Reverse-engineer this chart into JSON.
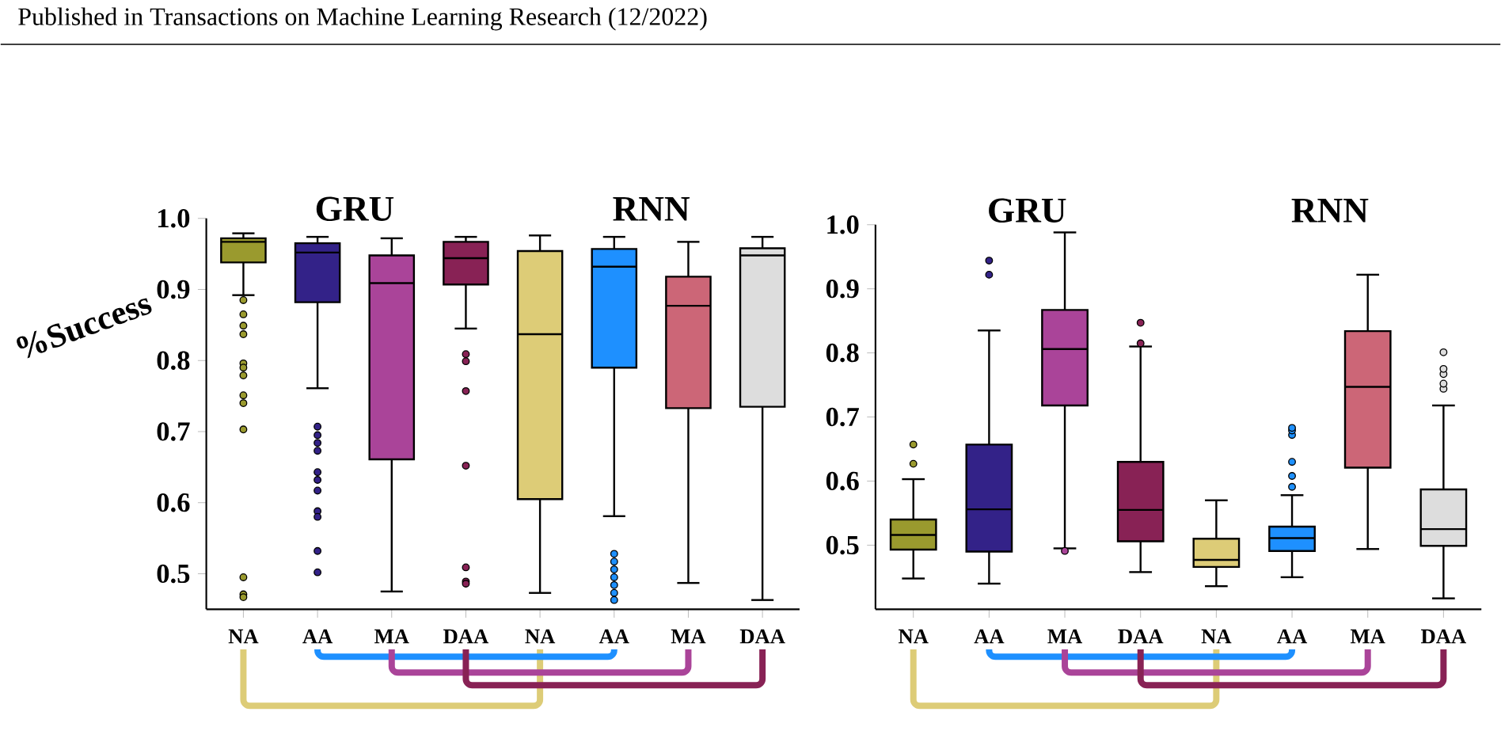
{
  "chart_data": [
    {
      "type": "box",
      "ylabel": "%Success",
      "annotations": [
        "GRU",
        "RNN",
        "Published in Transactions on Machine Learning Research (12/2022)"
      ],
      "categories": [
        "NA",
        "AA",
        "MA",
        "DAA",
        "NA",
        "AA",
        "MA",
        "DAA"
      ],
      "colors": [
        "#9a9a2e",
        "#332288",
        "#aa4499",
        "#882255",
        "#ddcc77",
        "#1e90ff",
        "#cc6677",
        "#dddddd"
      ],
      "boxes": [
        {
          "low": 0.892,
          "q1": 0.938,
          "median": 0.967,
          "q3": 0.972,
          "high": 0.979,
          "outliers": [
            0.885,
            0.865,
            0.849,
            0.837,
            0.796,
            0.79,
            0.779,
            0.751,
            0.74,
            0.703,
            0.495,
            0.471,
            0.467
          ]
        },
        {
          "low": 0.761,
          "q1": 0.882,
          "median": 0.952,
          "q3": 0.965,
          "high": 0.974,
          "outliers": [
            0.707,
            0.695,
            0.684,
            0.673,
            0.643,
            0.632,
            0.617,
            0.588,
            0.58,
            0.532,
            0.502
          ]
        },
        {
          "low": 0.475,
          "q1": 0.661,
          "median": 0.909,
          "q3": 0.948,
          "high": 0.972
        },
        {
          "low": 0.845,
          "q1": 0.907,
          "median": 0.944,
          "q3": 0.967,
          "high": 0.974,
          "outliers": [
            0.809,
            0.799,
            0.757,
            0.652,
            0.509,
            0.489,
            0.486
          ]
        },
        {
          "low": 0.473,
          "q1": 0.605,
          "median": 0.837,
          "q3": 0.954,
          "high": 0.976
        },
        {
          "low": 0.581,
          "q1": 0.79,
          "median": 0.932,
          "q3": 0.957,
          "high": 0.974,
          "outliers": [
            0.528,
            0.517,
            0.506,
            0.495,
            0.484,
            0.473,
            0.463
          ]
        },
        {
          "low": 0.487,
          "q1": 0.733,
          "median": 0.877,
          "q3": 0.918,
          "high": 0.967
        },
        {
          "low": 0.463,
          "q1": 0.735,
          "median": 0.948,
          "q3": 0.958,
          "high": 0.974
        }
      ],
      "ylim": [
        0.45,
        1.0
      ],
      "yticks": [
        0.5,
        0.6,
        0.7,
        0.8,
        0.9,
        {
          "value": 1.0,
          "label": "1.0"
        }
      ]
    },
    {
      "type": "box",
      "annotations": [
        "GRU",
        "RNN"
      ],
      "categories": [
        "NA",
        "AA",
        "MA",
        "DAA",
        "NA",
        "AA",
        "MA",
        "DAA"
      ],
      "colors": [
        "#9a9a2e",
        "#332288",
        "#aa4499",
        "#882255",
        "#ddcc77",
        "#1e90ff",
        "#cc6677",
        "#dddddd"
      ],
      "boxes": [
        {
          "low": 0.448,
          "q1": 0.493,
          "median": 0.516,
          "q3": 0.54,
          "high": 0.603,
          "outliers": [
            0.627,
            0.657
          ]
        },
        {
          "low": 0.44,
          "q1": 0.49,
          "median": 0.556,
          "q3": 0.657,
          "high": 0.835,
          "outliers": [
            0.922,
            0.944
          ]
        },
        {
          "low": 0.495,
          "q1": 0.718,
          "median": 0.806,
          "q3": 0.867,
          "high": 0.988,
          "outliers": [
            0.491
          ]
        },
        {
          "low": 0.458,
          "q1": 0.506,
          "median": 0.555,
          "q3": 0.63,
          "high": 0.81,
          "outliers": [
            0.815,
            0.847
          ]
        },
        {
          "low": 0.436,
          "q1": 0.466,
          "median": 0.477,
          "q3": 0.51,
          "high": 0.57
        },
        {
          "low": 0.45,
          "q1": 0.491,
          "median": 0.511,
          "q3": 0.529,
          "high": 0.578,
          "outliers": [
            0.591,
            0.608,
            0.63,
            0.672,
            0.679,
            0.683
          ]
        },
        {
          "low": 0.494,
          "q1": 0.621,
          "median": 0.747,
          "q3": 0.834,
          "high": 0.922
        },
        {
          "low": 0.417,
          "q1": 0.499,
          "median": 0.525,
          "q3": 0.587,
          "high": 0.718,
          "outliers": [
            0.744,
            0.752,
            0.767,
            0.775,
            0.801
          ]
        }
      ],
      "ylim": [
        0.4,
        1.0
      ],
      "yticks": [
        0.5,
        0.6,
        0.7,
        0.8,
        0.9,
        {
          "value": 1.0,
          "label": "1.0"
        }
      ]
    }
  ]
}
